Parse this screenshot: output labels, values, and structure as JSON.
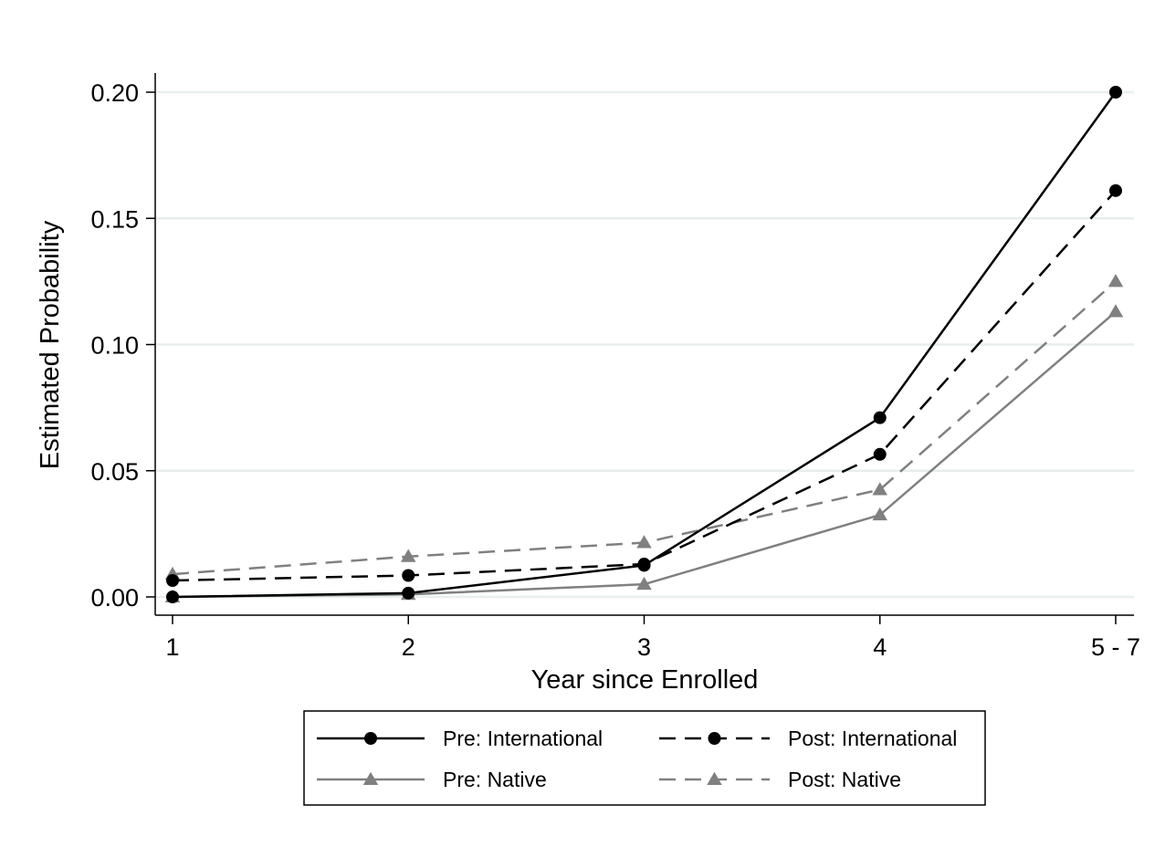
{
  "chart_data": {
    "type": "line",
    "categories": [
      "1",
      "2",
      "3",
      "4",
      "5 - 7"
    ],
    "xlabel": "Year since Enrolled",
    "ylabel": "Estimated Probability",
    "ylim": [
      0,
      0.2
    ],
    "yticks": [
      "0.00",
      "0.05",
      "0.10",
      "0.15",
      "0.20"
    ],
    "ytick_values": [
      0,
      0.05,
      0.1,
      0.15,
      0.2
    ],
    "grid": true,
    "legend_position": "bottom",
    "series": [
      {
        "name": "Pre: International",
        "values": [
          0.0,
          0.0015,
          0.0125,
          0.071,
          0.2
        ],
        "color": "#000000",
        "dash": "solid",
        "marker": "circle"
      },
      {
        "name": "Post: International",
        "values": [
          0.0065,
          0.0085,
          0.013,
          0.0565,
          0.161
        ],
        "color": "#000000",
        "dash": "dashed",
        "marker": "circle"
      },
      {
        "name": "Pre: Native",
        "values": [
          0.0,
          0.001,
          0.005,
          0.0325,
          0.113
        ],
        "color": "#808080",
        "dash": "solid",
        "marker": "triangle"
      },
      {
        "name": "Post: Native",
        "values": [
          0.009,
          0.016,
          0.0215,
          0.0425,
          0.125
        ],
        "color": "#808080",
        "dash": "dashed",
        "marker": "triangle"
      }
    ]
  }
}
